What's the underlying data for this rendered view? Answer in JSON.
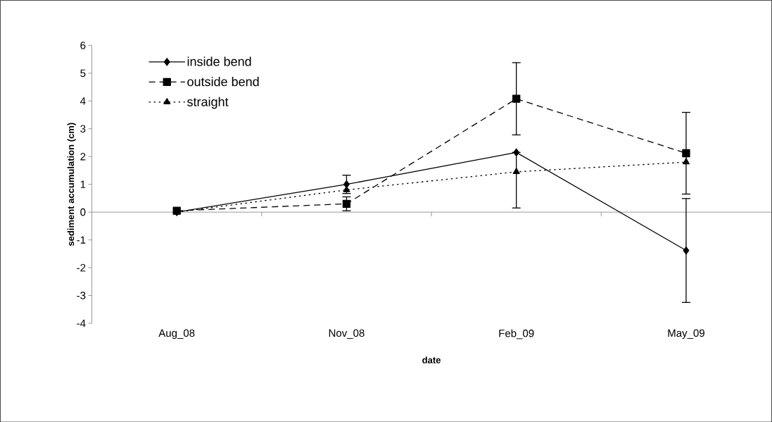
{
  "chart_data": {
    "type": "line",
    "xlabel": "date",
    "ylabel": "sediment accumulation (cm)",
    "categories": [
      "Aug_08",
      "Nov_08",
      "Feb_09",
      "May_09"
    ],
    "ylim": [
      -4,
      6
    ],
    "yticks": [
      -4,
      -3,
      -2,
      -1,
      0,
      1,
      2,
      3,
      4,
      5,
      6
    ],
    "legend": "top left",
    "grid": false,
    "ref_lines": [
      {
        "axis": "y",
        "value": 0,
        "color": "#808080"
      }
    ],
    "series": [
      {
        "name": "inside bend",
        "color": "#000000",
        "marker": "diamond",
        "line_style": "solid",
        "values": [
          0,
          1.0,
          2.15,
          -1.38
        ],
        "errors": [
          null,
          0.33,
          [
            0.15,
            2.15
          ],
          1.87
        ]
      },
      {
        "name": "outside bend",
        "color": "#000000",
        "marker": "square",
        "line_style": "dashed",
        "values": [
          0.05,
          0.3,
          4.08,
          2.12
        ],
        "errors": [
          null,
          0.25,
          1.3,
          1.47
        ]
      },
      {
        "name": "straight",
        "color": "#000000",
        "marker": "triangle",
        "line_style": "dotted",
        "values": [
          0,
          0.8,
          1.45,
          1.8
        ]
      }
    ]
  }
}
